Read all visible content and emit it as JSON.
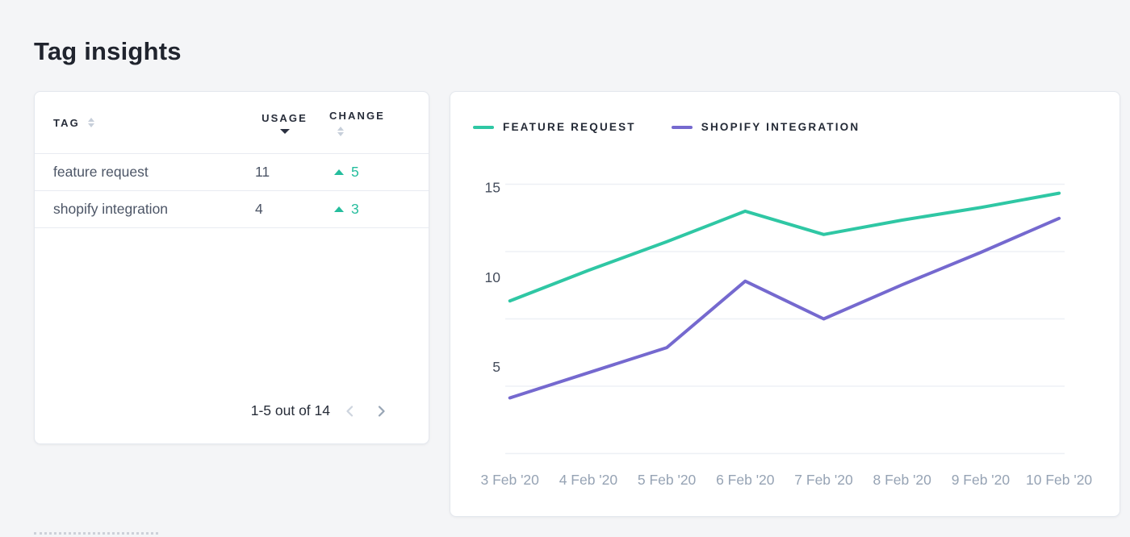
{
  "page": {
    "title": "Tag insights"
  },
  "table": {
    "header": {
      "tag": "TAG",
      "usage": "USAGE",
      "change": "CHANGE",
      "sorted_by": "usage",
      "sort_direction": "descending"
    },
    "rows": [
      {
        "tag": "feature request",
        "usage": "11",
        "change": "5",
        "change_direction": "up"
      },
      {
        "tag": "shopify integration",
        "usage": "4",
        "change": "3",
        "change_direction": "up"
      }
    ],
    "pagination": {
      "label": "1-5 out of 14",
      "prev_enabled": false,
      "next_enabled": true
    }
  },
  "chart_data": {
    "type": "line",
    "x": [
      "3 Feb '20",
      "4 Feb '20",
      "5 Feb '20",
      "6 Feb '20",
      "7 Feb '20",
      "8 Feb '20",
      "9 Feb '20",
      "10 Feb '20"
    ],
    "series": [
      {
        "name": "FEATURE REQUEST",
        "color": "#2fc7a4",
        "values": [
          8.5,
          10.2,
          11.8,
          13.5,
          12.2,
          13.0,
          13.7,
          14.5
        ]
      },
      {
        "name": "SHOPIFY INTEGRATION",
        "color": "#7569cf",
        "values": [
          3.1,
          4.5,
          5.9,
          9.6,
          7.5,
          9.4,
          11.2,
          13.1
        ]
      }
    ],
    "ylim": [
      0,
      15
    ],
    "ylabel_ticks": [
      15,
      10,
      5
    ],
    "gridline_values": [
      15,
      11.25,
      7.5,
      3.75,
      0
    ],
    "grid": true,
    "legend_position": "top-left",
    "title": "",
    "xlabel": "",
    "ylabel": ""
  },
  "colors": {
    "accent_teal": "#2fc7a4",
    "accent_purple": "#7569cf",
    "positive_change": "#25bd9d",
    "page_background": "#f4f5f7"
  }
}
